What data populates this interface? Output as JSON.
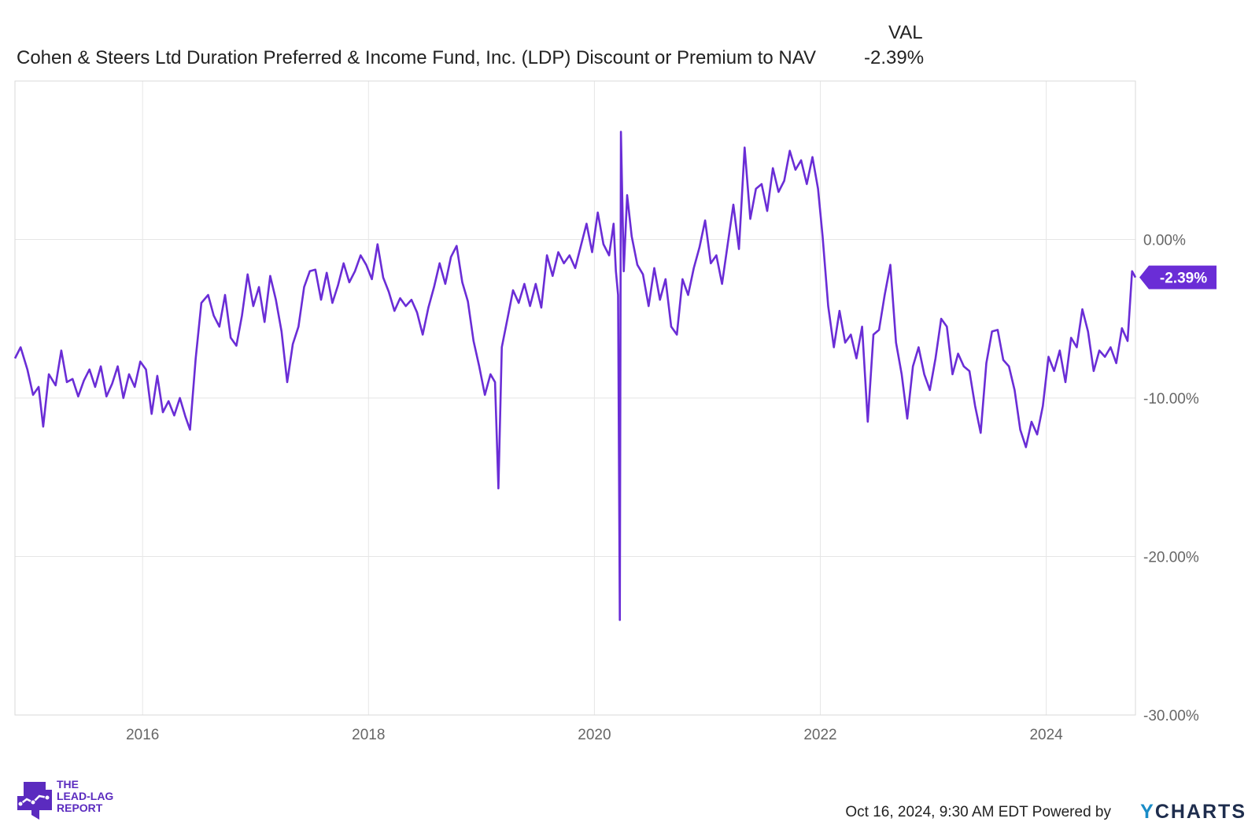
{
  "chart_data": {
    "type": "line",
    "title": "Cohen & Steers Ltd Duration Preferred & Income Fund, Inc. (LDP) Discount or Premium to NAV",
    "value_header": "VAL",
    "current_value_label": "-2.39%",
    "current_value": -2.39,
    "xlabel": "",
    "ylabel": "",
    "x_range": [
      2014.87,
      2024.79
    ],
    "ylim": [
      -30,
      10
    ],
    "x_ticks": [
      {
        "value": 2016,
        "label": "2016"
      },
      {
        "value": 2018,
        "label": "2018"
      },
      {
        "value": 2020,
        "label": "2020"
      },
      {
        "value": 2022,
        "label": "2022"
      },
      {
        "value": 2024,
        "label": "2024"
      }
    ],
    "y_ticks": [
      {
        "value": 0,
        "label": "0.00%"
      },
      {
        "value": -10,
        "label": "-10.00%"
      },
      {
        "value": -20,
        "label": "-20.00%"
      },
      {
        "value": -30,
        "label": "-30.00%"
      }
    ],
    "series": [
      {
        "name": "LDP Discount or Premium to NAV",
        "color": "#6a2dd6",
        "points": [
          [
            2014.87,
            -7.5
          ],
          [
            2014.92,
            -6.8
          ],
          [
            2014.98,
            -8.2
          ],
          [
            2015.03,
            -9.8
          ],
          [
            2015.08,
            -9.3
          ],
          [
            2015.12,
            -11.8
          ],
          [
            2015.17,
            -8.5
          ],
          [
            2015.23,
            -9.2
          ],
          [
            2015.28,
            -7.0
          ],
          [
            2015.33,
            -9.0
          ],
          [
            2015.38,
            -8.8
          ],
          [
            2015.43,
            -9.9
          ],
          [
            2015.48,
            -8.9
          ],
          [
            2015.53,
            -8.2
          ],
          [
            2015.58,
            -9.3
          ],
          [
            2015.63,
            -8.0
          ],
          [
            2015.68,
            -9.9
          ],
          [
            2015.73,
            -9.1
          ],
          [
            2015.78,
            -8.0
          ],
          [
            2015.83,
            -10.0
          ],
          [
            2015.88,
            -8.5
          ],
          [
            2015.93,
            -9.3
          ],
          [
            2015.98,
            -7.7
          ],
          [
            2016.03,
            -8.2
          ],
          [
            2016.08,
            -11.0
          ],
          [
            2016.13,
            -8.6
          ],
          [
            2016.18,
            -10.9
          ],
          [
            2016.23,
            -10.2
          ],
          [
            2016.28,
            -11.1
          ],
          [
            2016.33,
            -10.0
          ],
          [
            2016.38,
            -11.2
          ],
          [
            2016.42,
            -12.0
          ],
          [
            2016.47,
            -7.5
          ],
          [
            2016.52,
            -4.0
          ],
          [
            2016.58,
            -3.5
          ],
          [
            2016.63,
            -4.8
          ],
          [
            2016.68,
            -5.5
          ],
          [
            2016.73,
            -3.5
          ],
          [
            2016.78,
            -6.2
          ],
          [
            2016.83,
            -6.7
          ],
          [
            2016.88,
            -4.8
          ],
          [
            2016.93,
            -2.2
          ],
          [
            2016.98,
            -4.2
          ],
          [
            2017.03,
            -3.0
          ],
          [
            2017.08,
            -5.2
          ],
          [
            2017.13,
            -2.3
          ],
          [
            2017.18,
            -3.8
          ],
          [
            2017.23,
            -5.8
          ],
          [
            2017.28,
            -9.0
          ],
          [
            2017.33,
            -6.6
          ],
          [
            2017.38,
            -5.5
          ],
          [
            2017.43,
            -3.0
          ],
          [
            2017.48,
            -2.0
          ],
          [
            2017.53,
            -1.9
          ],
          [
            2017.58,
            -3.8
          ],
          [
            2017.63,
            -2.1
          ],
          [
            2017.68,
            -4.0
          ],
          [
            2017.73,
            -2.9
          ],
          [
            2017.78,
            -1.5
          ],
          [
            2017.83,
            -2.7
          ],
          [
            2017.88,
            -2.0
          ],
          [
            2017.93,
            -1.0
          ],
          [
            2017.98,
            -1.6
          ],
          [
            2018.03,
            -2.5
          ],
          [
            2018.08,
            -0.3
          ],
          [
            2018.13,
            -2.4
          ],
          [
            2018.18,
            -3.3
          ],
          [
            2018.23,
            -4.5
          ],
          [
            2018.28,
            -3.7
          ],
          [
            2018.33,
            -4.2
          ],
          [
            2018.38,
            -3.8
          ],
          [
            2018.43,
            -4.6
          ],
          [
            2018.48,
            -6.0
          ],
          [
            2018.53,
            -4.3
          ],
          [
            2018.58,
            -3.0
          ],
          [
            2018.63,
            -1.5
          ],
          [
            2018.68,
            -2.8
          ],
          [
            2018.73,
            -1.1
          ],
          [
            2018.78,
            -0.4
          ],
          [
            2018.83,
            -2.7
          ],
          [
            2018.88,
            -3.9
          ],
          [
            2018.93,
            -6.4
          ],
          [
            2018.98,
            -8.0
          ],
          [
            2019.03,
            -9.8
          ],
          [
            2019.08,
            -8.5
          ],
          [
            2019.12,
            -9.0
          ],
          [
            2019.15,
            -15.7
          ],
          [
            2019.18,
            -6.8
          ],
          [
            2019.23,
            -5.0
          ],
          [
            2019.28,
            -3.2
          ],
          [
            2019.33,
            -4.0
          ],
          [
            2019.38,
            -2.8
          ],
          [
            2019.43,
            -4.2
          ],
          [
            2019.48,
            -2.8
          ],
          [
            2019.53,
            -4.3
          ],
          [
            2019.58,
            -1.0
          ],
          [
            2019.63,
            -2.3
          ],
          [
            2019.68,
            -0.8
          ],
          [
            2019.73,
            -1.5
          ],
          [
            2019.78,
            -1.0
          ],
          [
            2019.83,
            -1.8
          ],
          [
            2019.88,
            -0.4
          ],
          [
            2019.93,
            1.0
          ],
          [
            2019.98,
            -0.8
          ],
          [
            2020.03,
            1.7
          ],
          [
            2020.08,
            -0.3
          ],
          [
            2020.13,
            -1.0
          ],
          [
            2020.17,
            1.0
          ],
          [
            2020.19,
            -2.0
          ],
          [
            2020.21,
            -3.5
          ],
          [
            2020.225,
            -24.0
          ],
          [
            2020.235,
            6.8
          ],
          [
            2020.26,
            -2.0
          ],
          [
            2020.29,
            2.8
          ],
          [
            2020.33,
            0.2
          ],
          [
            2020.38,
            -1.6
          ],
          [
            2020.43,
            -2.2
          ],
          [
            2020.48,
            -4.2
          ],
          [
            2020.53,
            -1.8
          ],
          [
            2020.58,
            -3.8
          ],
          [
            2020.63,
            -2.5
          ],
          [
            2020.68,
            -5.5
          ],
          [
            2020.73,
            -6.0
          ],
          [
            2020.78,
            -2.5
          ],
          [
            2020.83,
            -3.5
          ],
          [
            2020.88,
            -1.8
          ],
          [
            2020.93,
            -0.5
          ],
          [
            2020.98,
            1.2
          ],
          [
            2021.03,
            -1.5
          ],
          [
            2021.08,
            -1.0
          ],
          [
            2021.13,
            -2.8
          ],
          [
            2021.18,
            -0.3
          ],
          [
            2021.23,
            2.2
          ],
          [
            2021.28,
            -0.6
          ],
          [
            2021.33,
            5.8
          ],
          [
            2021.38,
            1.3
          ],
          [
            2021.43,
            3.2
          ],
          [
            2021.48,
            3.5
          ],
          [
            2021.53,
            1.8
          ],
          [
            2021.58,
            4.5
          ],
          [
            2021.63,
            3.0
          ],
          [
            2021.68,
            3.7
          ],
          [
            2021.73,
            5.6
          ],
          [
            2021.78,
            4.4
          ],
          [
            2021.83,
            5.0
          ],
          [
            2021.88,
            3.5
          ],
          [
            2021.93,
            5.2
          ],
          [
            2021.98,
            3.2
          ],
          [
            2022.02,
            0.2
          ],
          [
            2022.07,
            -4.2
          ],
          [
            2022.12,
            -6.8
          ],
          [
            2022.17,
            -4.5
          ],
          [
            2022.22,
            -6.5
          ],
          [
            2022.27,
            -6.0
          ],
          [
            2022.32,
            -7.5
          ],
          [
            2022.37,
            -5.5
          ],
          [
            2022.42,
            -11.5
          ],
          [
            2022.47,
            -6.0
          ],
          [
            2022.52,
            -5.7
          ],
          [
            2022.57,
            -3.5
          ],
          [
            2022.62,
            -1.6
          ],
          [
            2022.67,
            -6.5
          ],
          [
            2022.72,
            -8.5
          ],
          [
            2022.77,
            -11.3
          ],
          [
            2022.82,
            -8.0
          ],
          [
            2022.87,
            -6.8
          ],
          [
            2022.92,
            -8.5
          ],
          [
            2022.97,
            -9.5
          ],
          [
            2023.02,
            -7.5
          ],
          [
            2023.07,
            -5.0
          ],
          [
            2023.12,
            -5.5
          ],
          [
            2023.17,
            -8.5
          ],
          [
            2023.22,
            -7.2
          ],
          [
            2023.27,
            -8.0
          ],
          [
            2023.32,
            -8.3
          ],
          [
            2023.37,
            -10.5
          ],
          [
            2023.42,
            -12.2
          ],
          [
            2023.47,
            -7.8
          ],
          [
            2023.52,
            -5.8
          ],
          [
            2023.57,
            -5.7
          ],
          [
            2023.62,
            -7.6
          ],
          [
            2023.67,
            -8.0
          ],
          [
            2023.72,
            -9.5
          ],
          [
            2023.77,
            -12.0
          ],
          [
            2023.82,
            -13.1
          ],
          [
            2023.87,
            -11.5
          ],
          [
            2023.92,
            -12.3
          ],
          [
            2023.97,
            -10.5
          ],
          [
            2024.02,
            -7.4
          ],
          [
            2024.07,
            -8.3
          ],
          [
            2024.12,
            -7.0
          ],
          [
            2024.17,
            -9.0
          ],
          [
            2024.22,
            -6.2
          ],
          [
            2024.27,
            -6.8
          ],
          [
            2024.32,
            -4.4
          ],
          [
            2024.37,
            -5.8
          ],
          [
            2024.42,
            -8.3
          ],
          [
            2024.47,
            -7.0
          ],
          [
            2024.52,
            -7.4
          ],
          [
            2024.57,
            -6.8
          ],
          [
            2024.62,
            -7.8
          ],
          [
            2024.67,
            -5.6
          ],
          [
            2024.72,
            -6.4
          ],
          [
            2024.76,
            -2.0
          ],
          [
            2024.79,
            -2.39
          ]
        ]
      }
    ]
  },
  "footer": {
    "timestamp": "Oct 16, 2024, 9:30 AM EDT Powered by",
    "brand_y": "Y",
    "brand_rest": "CHARTS"
  },
  "logo": {
    "line1": "THE",
    "line2": "LEAD-LAG",
    "line3": "REPORT"
  },
  "colors": {
    "line": "#6a2dd6",
    "grid": "#e6e6e6",
    "axis_text": "#666666",
    "badge": "#6a2dd6"
  }
}
